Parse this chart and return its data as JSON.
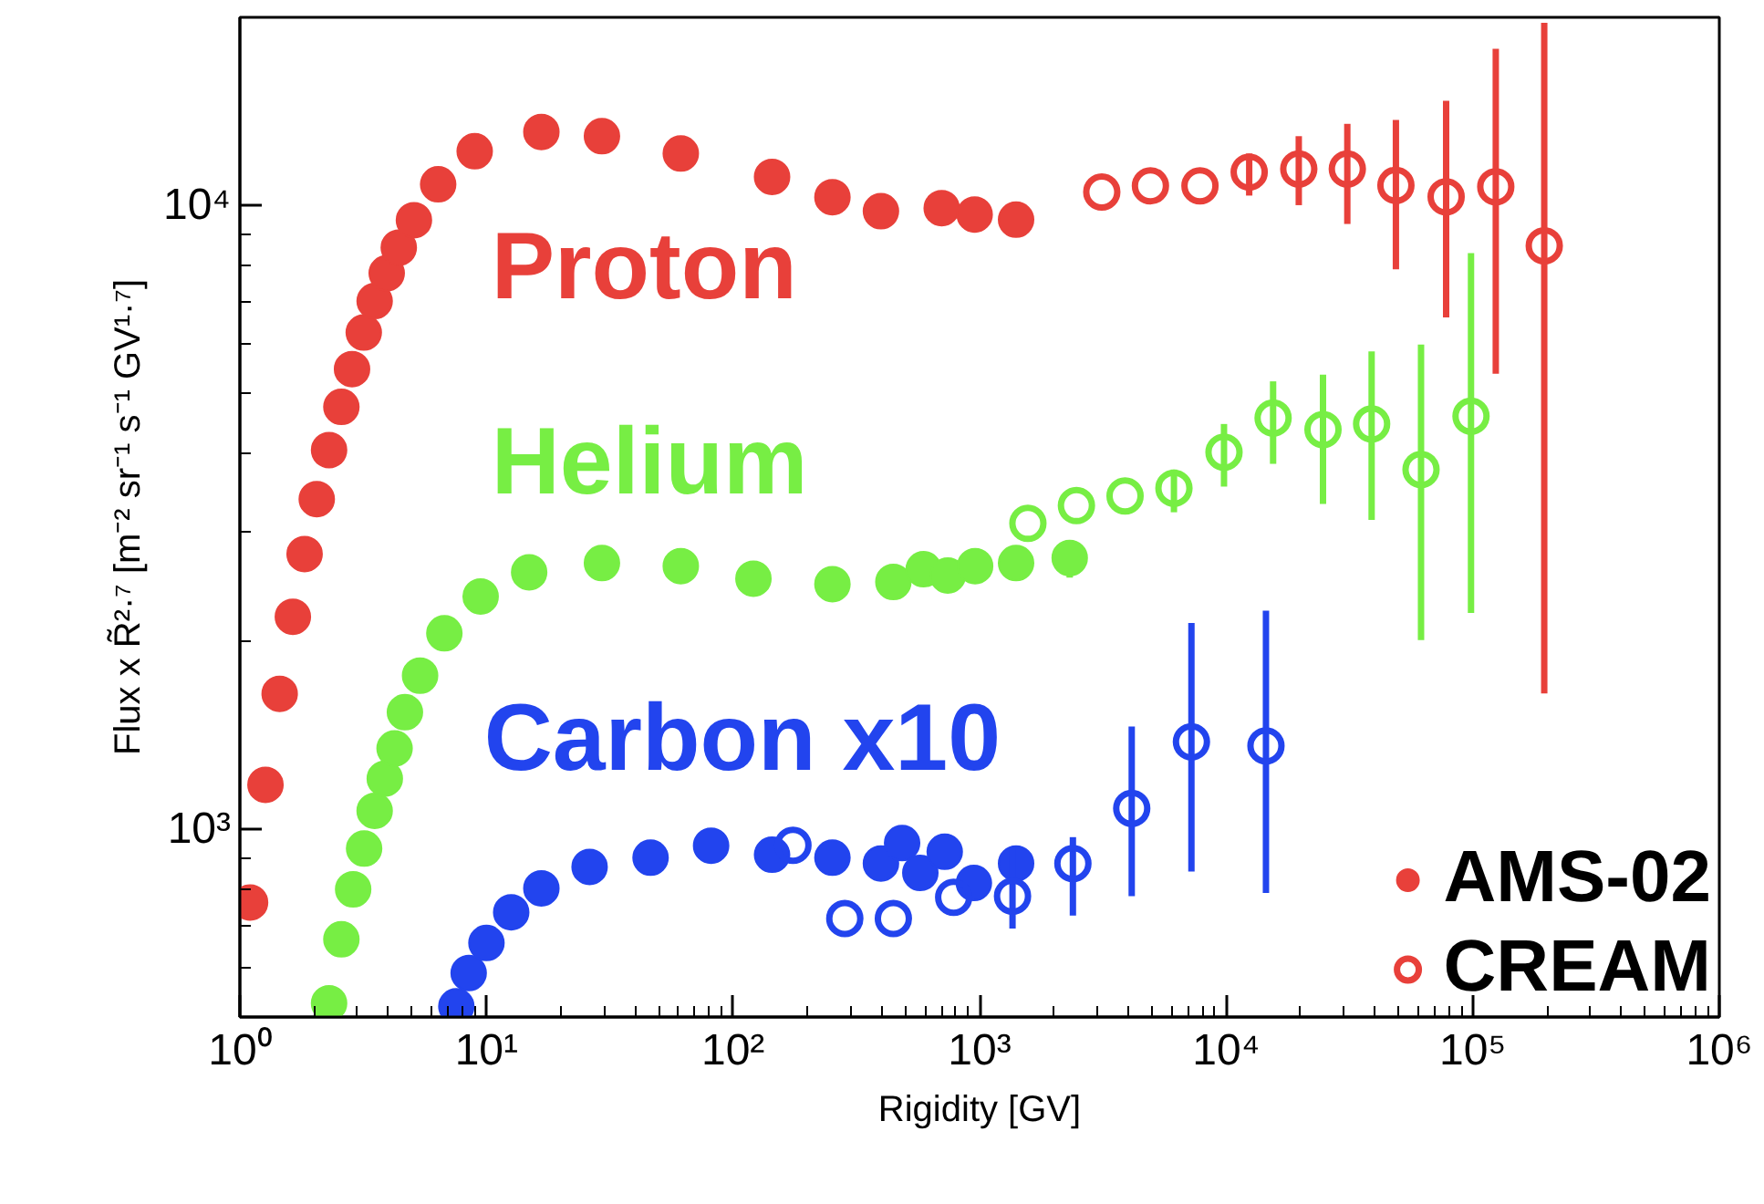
{
  "chart_data": {
    "type": "scatter",
    "xlabel": "Rigidity [GV]",
    "ylabel": "Flux x R̃²·⁷ [m⁻² sr⁻¹ s⁻¹ GV¹·⁷]",
    "log": "xy",
    "xlim": [
      1,
      1000000
    ],
    "ylim": [
      500,
      20000
    ],
    "xticks": [
      {
        "value": 1,
        "label": "10⁰"
      },
      {
        "value": 10,
        "label": "10¹"
      },
      {
        "value": 100,
        "label": "10²"
      },
      {
        "value": 1000,
        "label": "10³"
      },
      {
        "value": 10000,
        "label": "10⁴"
      },
      {
        "value": 100000,
        "label": "10⁵"
      },
      {
        "value": 1000000,
        "label": "10⁶"
      }
    ],
    "yticks": [
      {
        "value": 1000,
        "label": "10³"
      },
      {
        "value": 10000,
        "label": "10⁴"
      }
    ],
    "grid": false,
    "legend": "bottom right",
    "annotations": [
      "Proton",
      "Helium",
      "Carbon x10"
    ],
    "series": [
      {
        "name": "AMS-02",
        "marker": "circle",
        "x": [
          1.1,
          1.27,
          1.45,
          1.64,
          1.83,
          2.05,
          2.3,
          2.58,
          2.85,
          3.18,
          3.52,
          3.94,
          4.41,
          5.08,
          6.37,
          8.96,
          16.7,
          29.4,
          61.4,
          144,
          253,
          398,
          702,
          955,
          1406,
          2.3,
          2.58,
          2.88,
          3.19,
          3.52,
          3.87,
          4.24,
          4.67,
          5.38,
          6.75,
          9.47,
          14.9,
          29.4,
          61.4,
          121,
          253,
          447,
          593,
          743,
          959,
          1406,
          2320,
          7.55,
          8.47,
          10,
          12.6,
          16.7,
          26.2,
          46.3,
          81.5,
          144,
          253,
          398,
          485,
          575,
          722,
          948,
          1406
        ],
        "values": [
          763,
          1178,
          1648,
          2190,
          2760,
          3380,
          4050,
          4750,
          5460,
          6250,
          7020,
          7780,
          8550,
          9460,
          10800,
          12200,
          13100,
          12900,
          12100,
          11100,
          10300,
          9780,
          9890,
          9660,
          9480,
          526,
          666,
          801,
          931,
          1070,
          1205,
          1347,
          1540,
          1762,
          2060,
          2360,
          2580,
          2670,
          2640,
          2520,
          2470,
          2490,
          2610,
          2550,
          2640,
          2670,
          2720,
          520,
          588,
          657,
          736,
          804,
          870,
          900,
          941,
          910,
          900,
          881,
          950,
          851,
          920,
          820,
          881
        ],
        "colors": [
          "#e8403a",
          "#e8403a",
          "#e8403a",
          "#e8403a",
          "#e8403a",
          "#e8403a",
          "#e8403a",
          "#e8403a",
          "#e8403a",
          "#e8403a",
          "#e8403a",
          "#e8403a",
          "#e8403a",
          "#e8403a",
          "#e8403a",
          "#e8403a",
          "#e8403a",
          "#e8403a",
          "#e8403a",
          "#e8403a",
          "#e8403a",
          "#e8403a",
          "#e8403a",
          "#e8403a",
          "#e8403a",
          "#77ee44",
          "#77ee44",
          "#77ee44",
          "#77ee44",
          "#77ee44",
          "#77ee44",
          "#77ee44",
          "#77ee44",
          "#77ee44",
          "#77ee44",
          "#77ee44",
          "#77ee44",
          "#77ee44",
          "#77ee44",
          "#77ee44",
          "#77ee44",
          "#77ee44",
          "#77ee44",
          "#77ee44",
          "#77ee44",
          "#77ee44",
          "#77ee44",
          "#2244ee",
          "#2244ee",
          "#2244ee",
          "#2244ee",
          "#2244ee",
          "#2244ee",
          "#2244ee",
          "#2244ee",
          "#2244ee",
          "#2244ee",
          "#2244ee",
          "#2244ee",
          "#2244ee",
          "#2244ee",
          "#2244ee",
          "#2244ee"
        ],
        "errors": [
          null,
          null,
          null,
          null,
          null,
          null,
          null,
          null,
          null,
          null,
          null,
          null,
          null,
          null,
          null,
          null,
          null,
          null,
          null,
          null,
          null,
          null,
          null,
          null,
          null,
          null,
          null,
          null,
          null,
          null,
          null,
          null,
          null,
          null,
          null,
          null,
          null,
          null,
          null,
          null,
          null,
          null,
          null,
          null,
          null,
          null,
          [
            2530,
            2900
          ],
          null,
          null,
          null,
          null,
          null,
          null,
          null,
          null,
          null,
          null,
          null,
          null,
          null,
          null,
          null,
          [
            820,
            935
          ]
        ]
      },
      {
        "name": "CREAM",
        "marker": "circle_open",
        "x": [
          3130,
          4930,
          7830,
          12400,
          19700,
          31000,
          48800,
          78000,
          124000,
          195000,
          1570,
          2470,
          3890,
          6140,
          9800,
          15500,
          24700,
          38900,
          61700,
          98400,
          175,
          284,
          447,
          785,
          1360,
          2390,
          4140,
          7230,
          14500
        ],
        "values": [
          10500,
          10740,
          10740,
          11300,
          11430,
          11430,
          10760,
          10310,
          10700,
          8610,
          3090,
          3300,
          3420,
          3520,
          4020,
          4560,
          4370,
          4460,
          3770,
          4590,
          942,
          719,
          719,
          778,
          781,
          881,
          1080,
          1380,
          1360
        ],
        "colors": [
          "#e8403a",
          "#e8403a",
          "#e8403a",
          "#e8403a",
          "#e8403a",
          "#e8403a",
          "#e8403a",
          "#e8403a",
          "#e8403a",
          "#e8403a",
          "#77ee44",
          "#77ee44",
          "#77ee44",
          "#77ee44",
          "#77ee44",
          "#77ee44",
          "#77ee44",
          "#77ee44",
          "#77ee44",
          "#77ee44",
          "#2244ee",
          "#2244ee",
          "#2244ee",
          "#2244ee",
          "#2244ee",
          "#2244ee",
          "#2244ee",
          "#2244ee",
          "#2244ee"
        ],
        "errors": [
          null,
          null,
          null,
          [
            10360,
            12100
          ],
          [
            10000,
            12900
          ],
          [
            9330,
            13500
          ],
          [
            7890,
            13700
          ],
          [
            6610,
            14700
          ],
          [
            5370,
            17800
          ],
          [
            1650,
            19600
          ],
          null,
          null,
          null,
          [
            3220,
            3770
          ],
          [
            3540,
            4460
          ],
          [
            3850,
            5220
          ],
          [
            3320,
            5350
          ],
          [
            3130,
            5830
          ],
          [
            2010,
            5980
          ],
          [
            2220,
            8380
          ],
          null,
          null,
          null,
          null,
          [
            693,
            935
          ],
          [
            727,
            971
          ],
          [
            781,
            1460
          ],
          [
            855,
            2140
          ],
          [
            790,
            2240
          ]
        ]
      }
    ]
  }
}
